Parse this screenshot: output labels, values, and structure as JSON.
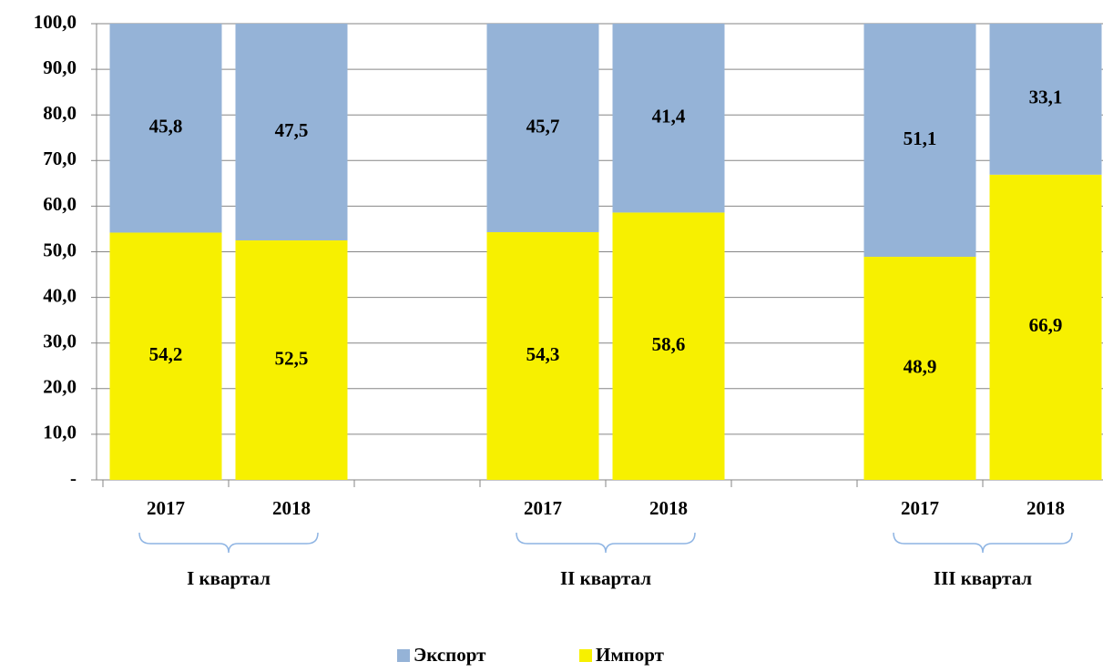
{
  "chart_data": {
    "type": "stacked_bar",
    "categories": [
      "2017",
      "2018",
      null,
      "2017",
      "2018",
      null,
      "2017",
      "2018"
    ],
    "groups": [
      "I квартал",
      "II квартал",
      "III квартал"
    ],
    "series": [
      {
        "name": "Экспорт",
        "color": "#95b3d7",
        "values": [
          45.8,
          47.5,
          null,
          45.7,
          41.4,
          null,
          51.1,
          33.1
        ],
        "value_labels": [
          "45,8",
          "47,5",
          null,
          "45,7",
          "41,4",
          null,
          "51,1",
          "33,1"
        ]
      },
      {
        "name": "Импорт",
        "color": "#f7f000",
        "values": [
          54.2,
          52.5,
          null,
          54.3,
          58.6,
          null,
          48.9,
          66.9
        ],
        "value_labels": [
          "54,2",
          "52,5",
          null,
          "54,3",
          "58,6",
          null,
          "48,9",
          "66,9"
        ]
      }
    ],
    "ylim": [
      0,
      100
    ],
    "yticks": [
      {
        "value": 0,
        "label": "-"
      },
      {
        "value": 10,
        "label": "10,0"
      },
      {
        "value": 20,
        "label": "20,0"
      },
      {
        "value": 30,
        "label": "30,0"
      },
      {
        "value": 40,
        "label": "40,0"
      },
      {
        "value": 50,
        "label": "50,0"
      },
      {
        "value": 60,
        "label": "60,0"
      },
      {
        "value": 70,
        "label": "70,0"
      },
      {
        "value": 80,
        "label": "80,0"
      },
      {
        "value": 90,
        "label": "90,0"
      },
      {
        "value": 100,
        "label": "100,0"
      }
    ],
    "grid": true
  }
}
